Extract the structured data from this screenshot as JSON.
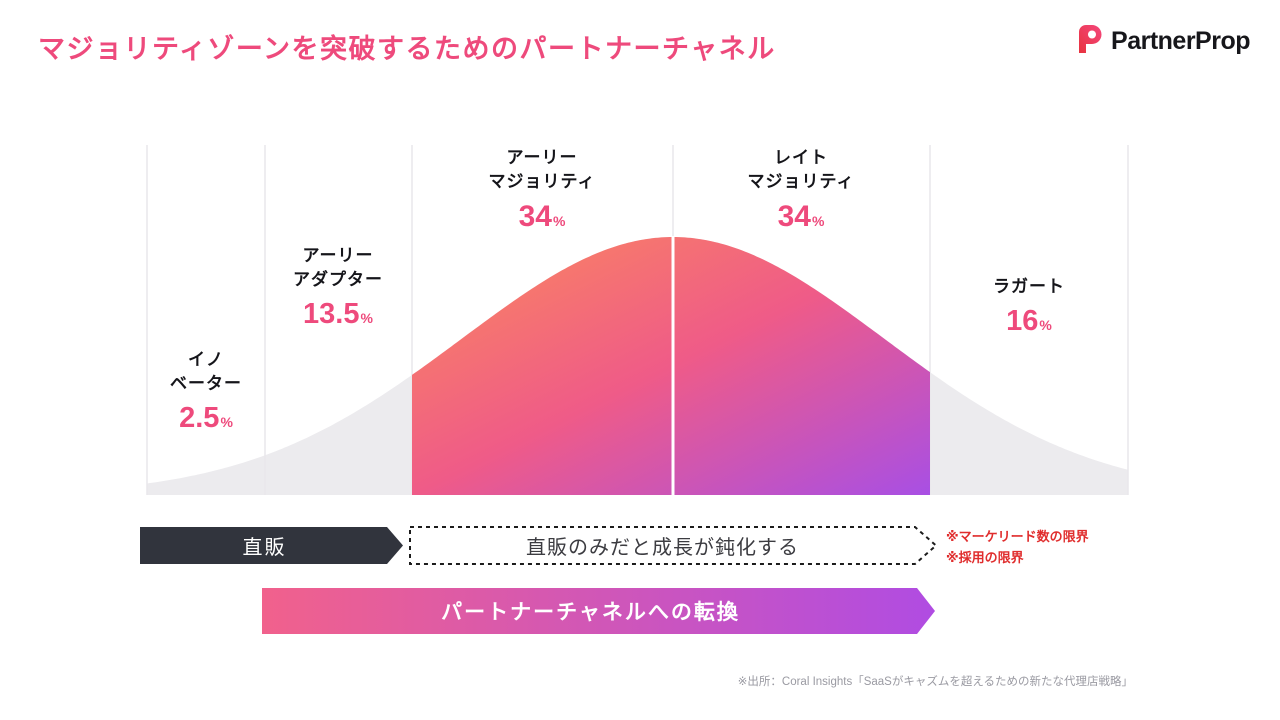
{
  "header": {
    "title": "マジョリティゾーンを突破するためのパートナーチャネル",
    "brand": "PartnerProp"
  },
  "chart_data": {
    "type": "area",
    "title": "",
    "categories": [
      "イノベーター",
      "アーリーアダプター",
      "アーリーマジョリティ",
      "レイトマジョリティ",
      "ラガート"
    ],
    "values": [
      2.5,
      13.5,
      34,
      34,
      16
    ],
    "segments": [
      {
        "name": "innovators",
        "label_lines": [
          "イノ",
          "ベーター"
        ],
        "value": "2.5",
        "unit": "%",
        "share_percent": 2.5,
        "highlighted": false
      },
      {
        "name": "early-adopters",
        "label_lines": [
          "アーリー",
          "アダプター"
        ],
        "value": "13.5",
        "unit": "%",
        "share_percent": 13.5,
        "highlighted": false
      },
      {
        "name": "early-majority",
        "label_lines": [
          "アーリー",
          "マジョリティ"
        ],
        "value": "34",
        "unit": "%",
        "share_percent": 34,
        "highlighted": true
      },
      {
        "name": "late-majority",
        "label_lines": [
          "レイト",
          "マジョリティ"
        ],
        "value": "34",
        "unit": "%",
        "share_percent": 34,
        "highlighted": true
      },
      {
        "name": "laggards",
        "label_lines": [
          "ラガート"
        ],
        "value": "16",
        "unit": "%",
        "share_percent": 16,
        "highlighted": false
      }
    ],
    "grid": false,
    "legend_position": "none"
  },
  "flow": {
    "direct_sales_label": "直販",
    "stagnation_label": "直販のみだと成長が鈍化する",
    "limit_notes": [
      "※マーケリード数の限界",
      "※採用の限界"
    ],
    "conversion_label": "パートナーチャネルへの転換"
  },
  "footnote": "※出所：Coral Insights「SaaSがキャズムを超えるための新たな代理店戦略」",
  "colors": {
    "accent_pink": "#ee4a7c",
    "curve_gray": "#ecebee",
    "divider_gray": "#e9e7ec",
    "gradient_start": "#fb8a5c",
    "gradient_mid": "#ef5b88",
    "gradient_end": "#a84fe4",
    "arrow_dark": "#31343d",
    "arrow_gradient_start": "#f1618c",
    "arrow_gradient_end": "#b04ce2",
    "note_red": "#e02d2d",
    "footnote_gray": "#9a9aa2"
  }
}
